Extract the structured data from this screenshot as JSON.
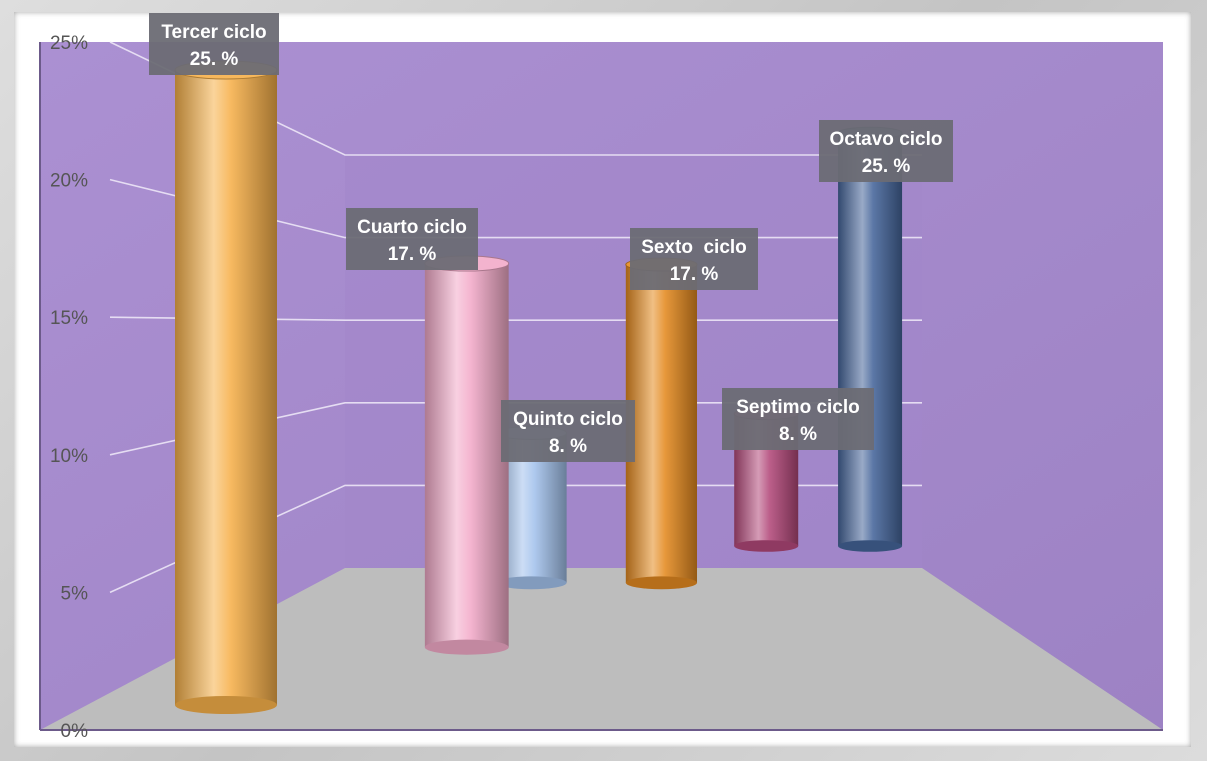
{
  "chart_data": {
    "type": "bar",
    "categories": [
      "Tercer ciclo",
      "Cuarto ciclo",
      "Quinto ciclo",
      "Sexto  ciclo",
      "Septimo ciclo",
      "Octavo ciclo"
    ],
    "values": [
      25,
      17,
      8,
      17,
      8,
      25
    ],
    "data_labels": [
      "25. %",
      "17. %",
      "8. %",
      "17. %",
      "8. %",
      "25. %"
    ],
    "series_colors": [
      "#f6b04a",
      "#f2aac8",
      "#a3c2ec",
      "#e48a20",
      "#b3497a",
      "#45659a"
    ],
    "y_ticks": [
      "0%",
      "5%",
      "10%",
      "15%",
      "20%",
      "25%"
    ],
    "ylim": [
      0,
      25
    ],
    "style": "3d-cylinder",
    "grid": true,
    "background_color": "#a78ad0",
    "floor_color": "#bdbdbd"
  }
}
